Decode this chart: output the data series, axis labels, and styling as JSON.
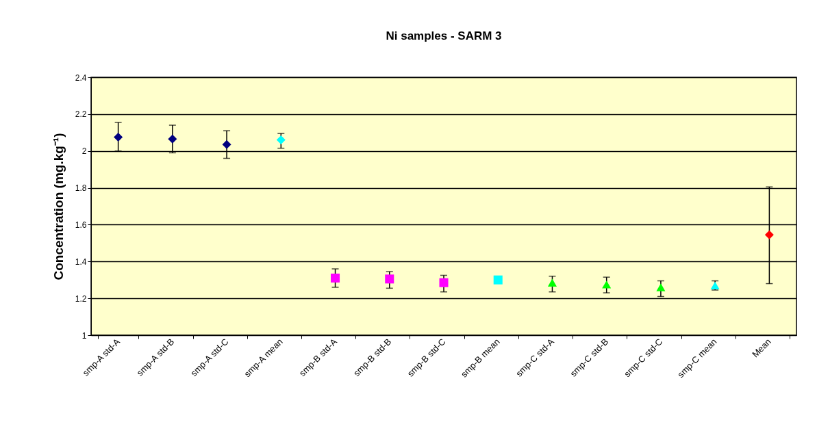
{
  "chart_data": {
    "type": "scatter",
    "title": "Ni samples - SARM 3",
    "ylabel": "Concentration (mg.kg⁻¹)",
    "categories": [
      "smp-A std-A",
      "smp-A std-B",
      "smp-A std-C",
      "smp-A mean",
      "smp-B std-A",
      "smp-B std-B",
      "smp-B std-C",
      "smp-B mean",
      "smp-C std-A",
      "smp-C std-B",
      "smp-C std-C",
      "smp-C mean",
      "Mean"
    ],
    "series": [
      {
        "color": "#000080",
        "marker": "diamond",
        "x": [
          "smp-A std-A",
          "smp-A std-B",
          "smp-A std-C"
        ],
        "values": [
          2.075,
          2.065,
          2.035
        ],
        "errors": [
          [
            2.0,
            2.155
          ],
          [
            1.99,
            2.14
          ],
          [
            1.96,
            2.11
          ]
        ]
      },
      {
        "color": "#00ffff",
        "marker": "diamond",
        "x": [
          "smp-A mean"
        ],
        "values": [
          2.06
        ],
        "errors": [
          [
            2.015,
            2.095
          ]
        ]
      },
      {
        "color": "#ff00ff",
        "marker": "square",
        "x": [
          "smp-B std-A",
          "smp-B std-B",
          "smp-B std-C"
        ],
        "values": [
          1.31,
          1.305,
          1.285
        ],
        "errors": [
          [
            1.26,
            1.36
          ],
          [
            1.255,
            1.345
          ],
          [
            1.235,
            1.325
          ]
        ]
      },
      {
        "color": "#00ffff",
        "marker": "square",
        "x": [
          "smp-B mean"
        ],
        "values": [
          1.3
        ],
        "errors": [
          null
        ]
      },
      {
        "color": "#00ff00",
        "marker": "triangle",
        "x": [
          "smp-C std-A",
          "smp-C std-B",
          "smp-C std-C"
        ],
        "values": [
          1.285,
          1.275,
          1.26
        ],
        "errors": [
          [
            1.235,
            1.32
          ],
          [
            1.23,
            1.315
          ],
          [
            1.21,
            1.295
          ]
        ]
      },
      {
        "color": "#00ffff",
        "marker": "triangle",
        "x": [
          "smp-C mean"
        ],
        "values": [
          1.27
        ],
        "errors": [
          [
            1.245,
            1.295
          ]
        ]
      },
      {
        "color": "#ff0000",
        "marker": "diamond",
        "x": [
          "Mean"
        ],
        "values": [
          1.545
        ],
        "errors": [
          [
            1.28,
            1.805
          ]
        ]
      }
    ],
    "ylim": [
      1,
      2.4
    ],
    "yticks": [
      1,
      1.2,
      1.4,
      1.6,
      1.8,
      2,
      2.2,
      2.4
    ],
    "grid": "y"
  }
}
